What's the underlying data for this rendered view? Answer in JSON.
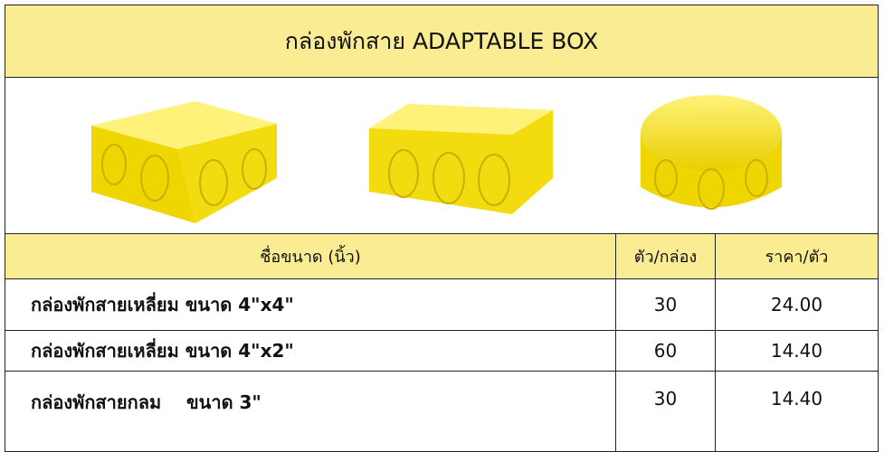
{
  "header": {
    "title": "กล่องพักสาย  ADAPTABLE BOX"
  },
  "table": {
    "columns": [
      "ชื่อขนาด (นิ้ว)",
      "ตัว/กล่อง",
      "ราคา/ตัว"
    ],
    "rows": [
      [
        "กล่องพักสายเหลี่ยม ขนาด 4\"x4\"",
        "30",
        "24.00"
      ],
      [
        "กล่องพักสายเหลี่ยม ขนาด 4\"x2\"",
        "60",
        "14.40"
      ],
      [
        "กล่องพักสายกลม    ขนาด 3\"",
        "30",
        "14.40"
      ]
    ]
  }
}
